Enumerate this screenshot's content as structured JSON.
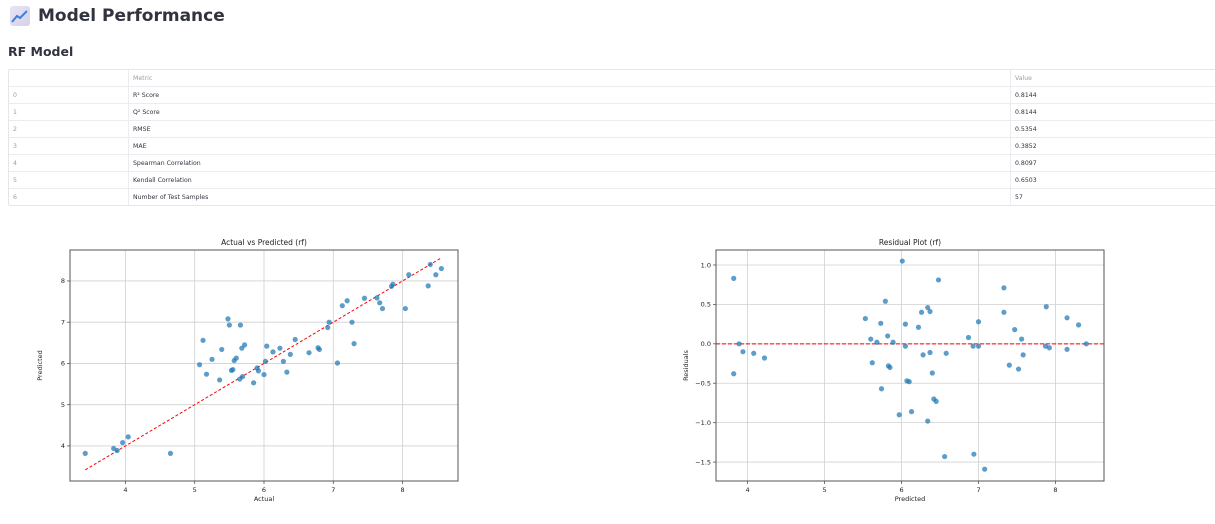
{
  "header": {
    "icon": "chart-increasing-icon",
    "title": "Model Performance"
  },
  "section": {
    "title": "RF Model"
  },
  "table": {
    "columns": [
      "",
      "Metric",
      "Value"
    ],
    "rows": [
      {
        "index": "0",
        "metric": "R² Score",
        "value": "0.8144"
      },
      {
        "index": "1",
        "metric": "Q² Score",
        "value": "0.8144"
      },
      {
        "index": "2",
        "metric": "RMSE",
        "value": "0.5354"
      },
      {
        "index": "3",
        "metric": "MAE",
        "value": "0.3852"
      },
      {
        "index": "4",
        "metric": "Spearman Correlation",
        "value": "0.8097"
      },
      {
        "index": "5",
        "metric": "Kendall Correlation",
        "value": "0.6503"
      },
      {
        "index": "6",
        "metric": "Number of Test Samples",
        "value": "57"
      }
    ]
  },
  "colors": {
    "point": "#1f77b4",
    "reference_line": "#ff0000",
    "grid": "#d0d0d0",
    "axis": "#555555"
  },
  "chart_data": [
    {
      "type": "scatter",
      "title": "Actual vs Predicted (rf)",
      "xlabel": "Actual",
      "ylabel": "Predicted",
      "xlim": [
        3.2,
        8.8
      ],
      "ylim": [
        3.15,
        8.75
      ],
      "xticks": [
        4,
        5,
        6,
        7,
        8
      ],
      "yticks": [
        4,
        5,
        6,
        7,
        8
      ],
      "grid": true,
      "reference_line": {
        "style": "dashed",
        "color": "#ff0000",
        "from": [
          3.42,
          3.42
        ],
        "to": [
          8.55,
          8.55
        ]
      },
      "points": [
        [
          3.42,
          3.82
        ],
        [
          3.83,
          3.94
        ],
        [
          3.88,
          3.89
        ],
        [
          3.96,
          4.08
        ],
        [
          4.04,
          4.22
        ],
        [
          4.65,
          3.82
        ],
        [
          5.07,
          5.97
        ],
        [
          5.12,
          6.56
        ],
        [
          5.17,
          5.74
        ],
        [
          5.25,
          6.1
        ],
        [
          5.36,
          5.6
        ],
        [
          5.39,
          6.34
        ],
        [
          5.48,
          7.08
        ],
        [
          5.53,
          5.83
        ],
        [
          5.55,
          5.85
        ],
        [
          5.57,
          6.07
        ],
        [
          5.6,
          6.13
        ],
        [
          5.65,
          5.62
        ],
        [
          5.66,
          6.93
        ],
        [
          5.68,
          6.37
        ],
        [
          5.69,
          5.68
        ],
        [
          5.72,
          6.45
        ],
        [
          5.85,
          5.53
        ],
        [
          5.9,
          5.89
        ],
        [
          5.92,
          5.82
        ],
        [
          6.0,
          5.73
        ],
        [
          6.02,
          6.05
        ],
        [
          6.04,
          6.42
        ],
        [
          6.13,
          6.28
        ],
        [
          6.23,
          6.37
        ],
        [
          6.28,
          6.05
        ],
        [
          6.33,
          5.79
        ],
        [
          6.38,
          6.22
        ],
        [
          6.45,
          6.58
        ],
        [
          6.65,
          6.26
        ],
        [
          6.78,
          6.38
        ],
        [
          6.8,
          6.34
        ],
        [
          6.92,
          6.87
        ],
        [
          6.94,
          7.0
        ],
        [
          7.06,
          6.01
        ],
        [
          7.13,
          7.4
        ],
        [
          7.2,
          7.52
        ],
        [
          7.27,
          7.0
        ],
        [
          7.3,
          6.48
        ],
        [
          7.45,
          7.58
        ],
        [
          7.63,
          7.59
        ],
        [
          7.67,
          7.47
        ],
        [
          7.71,
          7.33
        ],
        [
          7.84,
          7.87
        ],
        [
          7.86,
          7.92
        ],
        [
          8.04,
          7.33
        ],
        [
          8.09,
          8.15
        ],
        [
          8.37,
          7.88
        ],
        [
          8.4,
          8.4
        ],
        [
          8.48,
          8.15
        ],
        [
          8.56,
          8.3
        ],
        [
          5.5,
          6.93
        ]
      ]
    },
    {
      "type": "scatter",
      "title": "Residual Plot (rf)",
      "xlabel": "Predicted",
      "ylabel": "Residuals",
      "xlim": [
        3.59,
        8.63
      ],
      "ylim": [
        -1.74,
        1.19
      ],
      "xticks": [
        4,
        5,
        6,
        7,
        8
      ],
      "yticks": [
        -1.5,
        -1.0,
        -0.5,
        0.0,
        0.5,
        1.0
      ],
      "grid": true,
      "reference_line": {
        "style": "dashed",
        "color": "#ff0000",
        "y": 0.0
      },
      "points": [
        [
          3.82,
          0.83
        ],
        [
          3.82,
          -0.38
        ],
        [
          3.89,
          0.0
        ],
        [
          3.94,
          -0.1
        ],
        [
          4.08,
          -0.12
        ],
        [
          4.22,
          -0.18
        ],
        [
          5.53,
          0.32
        ],
        [
          5.6,
          0.06
        ],
        [
          5.62,
          -0.24
        ],
        [
          5.68,
          0.02
        ],
        [
          5.73,
          0.26
        ],
        [
          5.74,
          -0.57
        ],
        [
          5.79,
          0.54
        ],
        [
          5.82,
          0.1
        ],
        [
          5.83,
          -0.28
        ],
        [
          5.85,
          -0.3
        ],
        [
          5.89,
          0.02
        ],
        [
          5.97,
          -0.9
        ],
        [
          6.01,
          1.05
        ],
        [
          6.05,
          0.25
        ],
        [
          6.05,
          -0.03
        ],
        [
          6.07,
          -0.47
        ],
        [
          6.1,
          -0.48
        ],
        [
          6.13,
          -0.86
        ],
        [
          6.22,
          0.21
        ],
        [
          6.26,
          0.4
        ],
        [
          6.28,
          -0.14
        ],
        [
          6.34,
          -0.98
        ],
        [
          6.34,
          0.46
        ],
        [
          6.37,
          0.41
        ],
        [
          6.37,
          -0.11
        ],
        [
          6.4,
          -0.37
        ],
        [
          6.42,
          -0.7
        ],
        [
          6.45,
          -0.73
        ],
        [
          6.48,
          0.81
        ],
        [
          6.56,
          -1.43
        ],
        [
          6.58,
          -0.12
        ],
        [
          6.87,
          0.08
        ],
        [
          6.94,
          -1.4
        ],
        [
          7.0,
          0.28
        ],
        [
          7.0,
          -0.03
        ],
        [
          7.08,
          -1.59
        ],
        [
          7.33,
          0.71
        ],
        [
          7.33,
          0.4
        ],
        [
          7.4,
          -0.27
        ],
        [
          7.47,
          0.18
        ],
        [
          7.52,
          -0.32
        ],
        [
          7.56,
          0.06
        ],
        [
          7.58,
          -0.14
        ],
        [
          7.87,
          -0.03
        ],
        [
          7.88,
          0.47
        ],
        [
          7.92,
          -0.05
        ],
        [
          8.15,
          -0.07
        ],
        [
          8.15,
          0.33
        ],
        [
          8.3,
          0.24
        ],
        [
          8.4,
          0.0
        ],
        [
          6.93,
          -0.03
        ]
      ]
    }
  ]
}
